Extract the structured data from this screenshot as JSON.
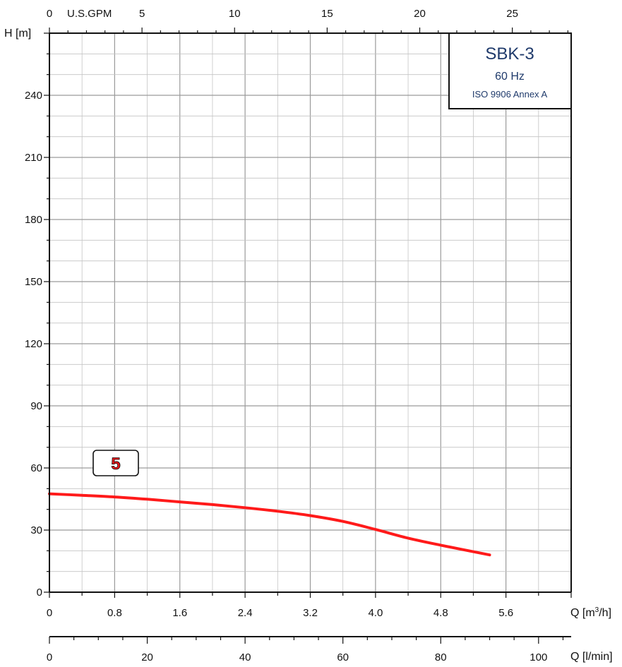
{
  "chart_data": {
    "type": "line",
    "legend": {
      "model": "SBK-3",
      "frequency": "60 Hz",
      "standard": "ISO 9906 Annex A"
    },
    "y_axis": {
      "label": "H [m]",
      "ticks": [
        "0",
        "30",
        "60",
        "90",
        "120",
        "150",
        "180",
        "210",
        "240"
      ],
      "ylim": [
        0,
        270
      ]
    },
    "x_axis_top": {
      "unit_label": "U.S.GPM",
      "ticks": [
        "0",
        "5",
        "10",
        "15",
        "20",
        "25"
      ]
    },
    "x_axis_m3h": {
      "label": "Q [m³/h]",
      "ticks": [
        "0",
        "0.8",
        "1.6",
        "2.4",
        "3.2",
        "4.0",
        "4.8",
        "5.6"
      ],
      "xlim": [
        0,
        6.4
      ]
    },
    "x_axis_lmin": {
      "label": "Q [l/min]",
      "ticks": [
        "0",
        "20",
        "40",
        "60",
        "80",
        "100"
      ]
    },
    "grid": true,
    "series": [
      {
        "name": "5",
        "color": "#ff1a1a",
        "x": [
          0,
          0.4,
          0.8,
          1.2,
          1.6,
          2.0,
          2.4,
          2.8,
          3.2,
          3.6,
          4.0,
          4.4,
          4.8,
          5.4
        ],
        "y": [
          47.5,
          46.8,
          46.0,
          44.9,
          43.6,
          42.3,
          40.8,
          39.1,
          37.0,
          34.2,
          30.3,
          26.1,
          22.7,
          18.0
        ]
      }
    ]
  }
}
